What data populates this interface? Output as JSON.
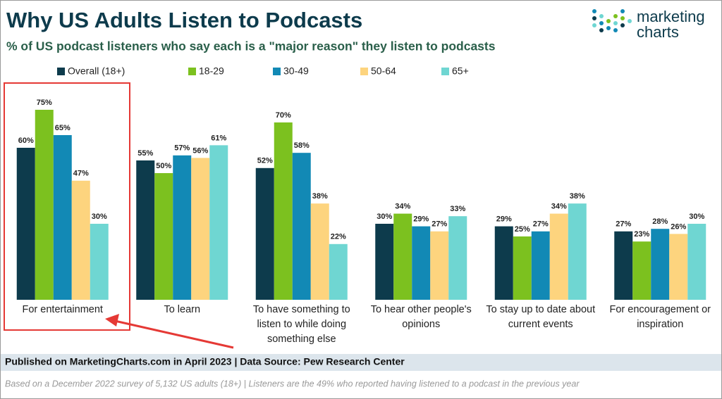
{
  "chart_data": {
    "type": "bar",
    "title": "Why US Adults Listen to Podcasts",
    "subtitle": "% of US podcast listeners who say each is a \"major reason\" they listen to podcasts",
    "logo": [
      "marketing",
      "charts"
    ],
    "categories": [
      "For entertainment",
      "To learn",
      "To have something to listen to while doing something else",
      "To hear other people's opinions",
      "To stay up to date about current events",
      "For encouragement or inspiration"
    ],
    "series": [
      {
        "name": "Overall (18+)",
        "color": "#0d3b4c",
        "values": [
          60,
          55,
          52,
          30,
          29,
          27
        ],
        "value_labels": [
          "60%",
          "55%",
          "52%",
          "30%",
          "29%",
          "27%"
        ]
      },
      {
        "name": "18-29",
        "color": "#7cc11f",
        "values": [
          75,
          50,
          70,
          34,
          25,
          23
        ],
        "value_labels": [
          "75%",
          "50%",
          "70%",
          "34%",
          "25%",
          "23%"
        ]
      },
      {
        "name": "30-49",
        "color": "#1289b5",
        "values": [
          65,
          57,
          58,
          29,
          27,
          28
        ],
        "value_labels": [
          "65%",
          "57%",
          "58%",
          "29%",
          "27%",
          "28%"
        ]
      },
      {
        "name": "50-64",
        "color": "#fdd47e",
        "values": [
          47,
          56,
          38,
          27,
          34,
          26
        ],
        "value_labels": [
          "47%",
          "56%",
          "38%",
          "27%",
          "34%",
          "26%"
        ]
      },
      {
        "name": "65+",
        "color": "#6fd6d2",
        "values": [
          30,
          61,
          22,
          33,
          38,
          30
        ],
        "value_labels": [
          "30%",
          "61%",
          "22%",
          "33%",
          "38%",
          "30%"
        ]
      }
    ],
    "source": "Published on MarketingCharts.com in April 2023 | Data Source: Pew Research Center",
    "note": "Based on a December 2022 survey of 5,132 US adults (18+) | Listeners are the 49% who reported having listened to a podcast in the previous year"
  }
}
